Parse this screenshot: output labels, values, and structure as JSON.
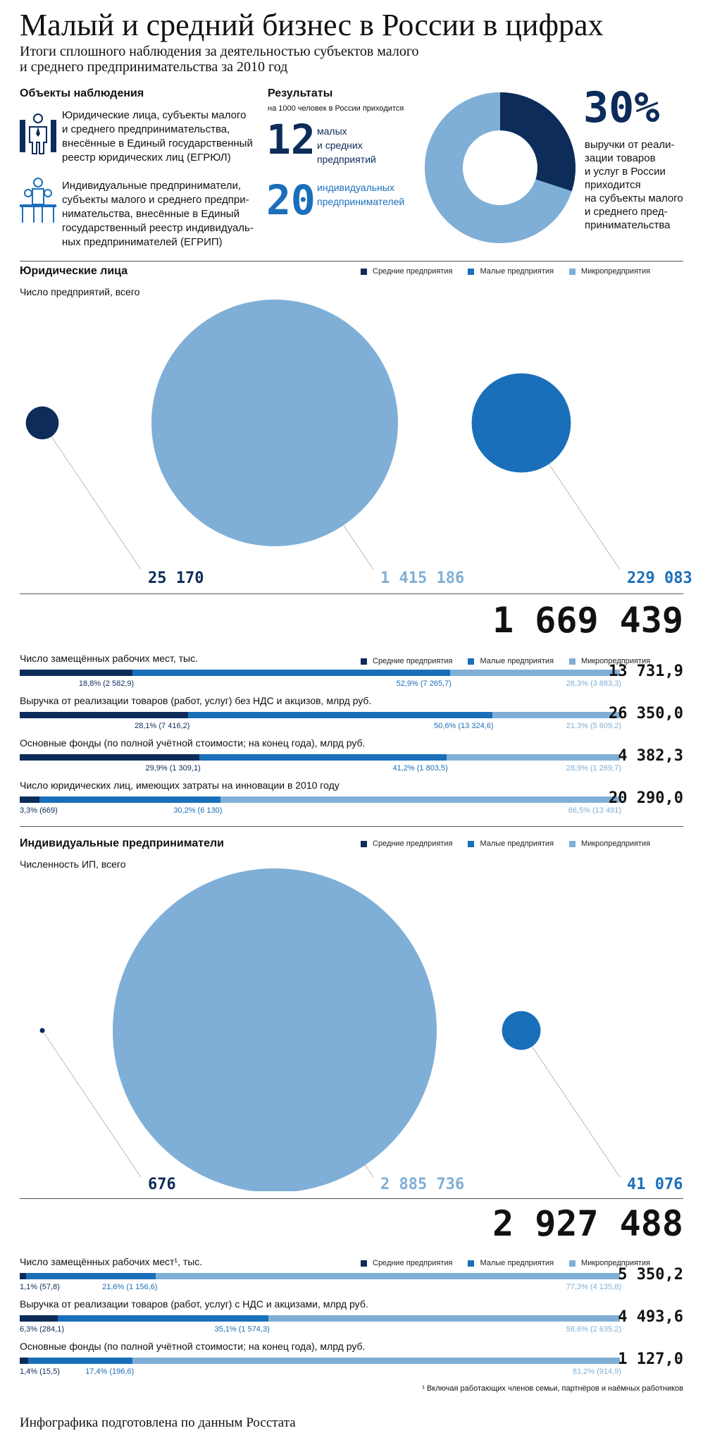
{
  "title": "Малый и средний бизнес в России в цифрах",
  "subtitle_l1": "Итоги сплошного наблюдения за деятельностью субъектов малого",
  "subtitle_l2": "и среднего предпринимательства за 2010 год",
  "objects": {
    "heading": "Объекты наблюдения",
    "item1": [
      "Юридические лица, субъекты малого",
      "и среднего предпринимательства,",
      "внесённые в Единый государственный",
      "реестр юридических лиц (ЕГРЮЛ)"
    ],
    "item2": [
      "Индивидуальные предприниматели,",
      "субъекты малого и среднего предпри-",
      "нимательства, внесённые в Единый",
      "государственный реестр индивидуаль-",
      "ных предпринимателей (ЕГРИП)"
    ]
  },
  "results": {
    "heading": "Результаты",
    "sub": "на 1000 человек в России приходится",
    "n1": "12",
    "n1_label": [
      "малых",
      "и средних",
      "предприятий"
    ],
    "n2": "20",
    "n2_label": [
      "индивидуальных",
      "предпринимателей"
    ],
    "pct": "30%",
    "pct_label": [
      "выручки от реали-",
      "зации товаров",
      "и услуг в России",
      "приходится",
      "на субъекты малого",
      "и среднего пред-",
      "принимательства"
    ],
    "donut_share": 0.3
  },
  "colors": {
    "navy": "#0d2c5a",
    "blue": "#1a6fba",
    "light": "#7fafd6"
  },
  "legend": [
    "Средние предприятия",
    "Малые предприятия",
    "Микропредприятия"
  ],
  "legal": {
    "heading": "Юридические лица",
    "count_label": "Число предприятий,  всего",
    "total": "1 669 439"
  },
  "ip": {
    "heading": "Индивидуальные предприниматели",
    "count_label": "Численность ИП, всего",
    "total": "2 927 488"
  },
  "footnote": "¹ Включая работающих членов семьи, партнёров и наёмных работников",
  "source": "Инфографика подготовлена по данным Росстата",
  "chart_data": [
    {
      "type": "bubble",
      "title": "Юридические лица",
      "categories": [
        "Средние предприятия",
        "Микропредприятия",
        "Малые предприятия"
      ],
      "values": [
        25170,
        1415186,
        229083
      ],
      "labels": [
        "25 170",
        "1 415 186",
        "229 083"
      ]
    },
    {
      "type": "bar",
      "stacked": true,
      "series_names": [
        "Средние предприятия",
        "Малые предприятия",
        "Микропредприятия"
      ],
      "rows": [
        {
          "label": "Число замещённых рабочих мест, тыс.",
          "shares": [
            18.8,
            52.9,
            28.3
          ],
          "labels": [
            "18,8% (2 582,9)",
            "52,9% (7 265,7)",
            "28,3% (3 883,3)"
          ],
          "total": "13 731,9"
        },
        {
          "label": "Выручка от реализации товаров (работ,  услуг) без НДС и акцизов, млрд руб.",
          "shares": [
            28.1,
            50.6,
            21.3
          ],
          "labels": [
            "28,1% (7 416,2)",
            "50,6% (13 324,6)",
            "21,3% (5 609,2)"
          ],
          "total": "26 350,0"
        },
        {
          "label": "Основные фонды (по полной учётной стоимости; на конец года), млрд руб.",
          "shares": [
            29.9,
            41.2,
            28.9
          ],
          "labels": [
            "29,9% (1 309,1)",
            "41,2% (1 803,5)",
            "28,9% (1 269,7)"
          ],
          "total": "4 382,3"
        },
        {
          "label": "Число юридических лиц, имеющих затраты на инновации в 2010 году",
          "shares": [
            3.3,
            30.2,
            66.5
          ],
          "labels": [
            "3,3% (669)",
            "30,2% (6 130)",
            "66,5% (13 491)"
          ],
          "total": "20 290,0"
        }
      ]
    },
    {
      "type": "bubble",
      "title": "Индивидуальные предприниматели",
      "categories": [
        "Средние предприятия",
        "Микропредприятия",
        "Малые предприятия"
      ],
      "values": [
        676,
        2885736,
        41076
      ],
      "labels": [
        "676",
        "2 885 736",
        "41 076"
      ]
    },
    {
      "type": "bar",
      "stacked": true,
      "series_names": [
        "Средние предприятия",
        "Малые предприятия",
        "Микропредприятия"
      ],
      "rows": [
        {
          "label": "Число замещённых рабочих мест¹, тыс.",
          "shares": [
            1.1,
            21.6,
            77.3
          ],
          "labels": [
            "1,1% (57,8)",
            "21,6% (1 156,6)",
            "77,3% (4 135,8)"
          ],
          "total": "5 350,2"
        },
        {
          "label": "Выручка от реализации товаров (работ, услуг) с НДС и акцизами, млрд руб.",
          "shares": [
            6.3,
            35.1,
            58.6
          ],
          "labels": [
            "6,3% (284,1)",
            "35,1% (1 574,3)",
            "58,6% (2 635,2)"
          ],
          "total": "4 493,6"
        },
        {
          "label": "Основные фонды (по полной учётной стоимости; на конец года), млрд руб.",
          "shares": [
            1.4,
            17.4,
            81.2
          ],
          "labels": [
            "1,4% (15,5)",
            "17,4% (196,6)",
            "81,2% (914,9)"
          ],
          "total": "1 127,0"
        }
      ]
    }
  ]
}
